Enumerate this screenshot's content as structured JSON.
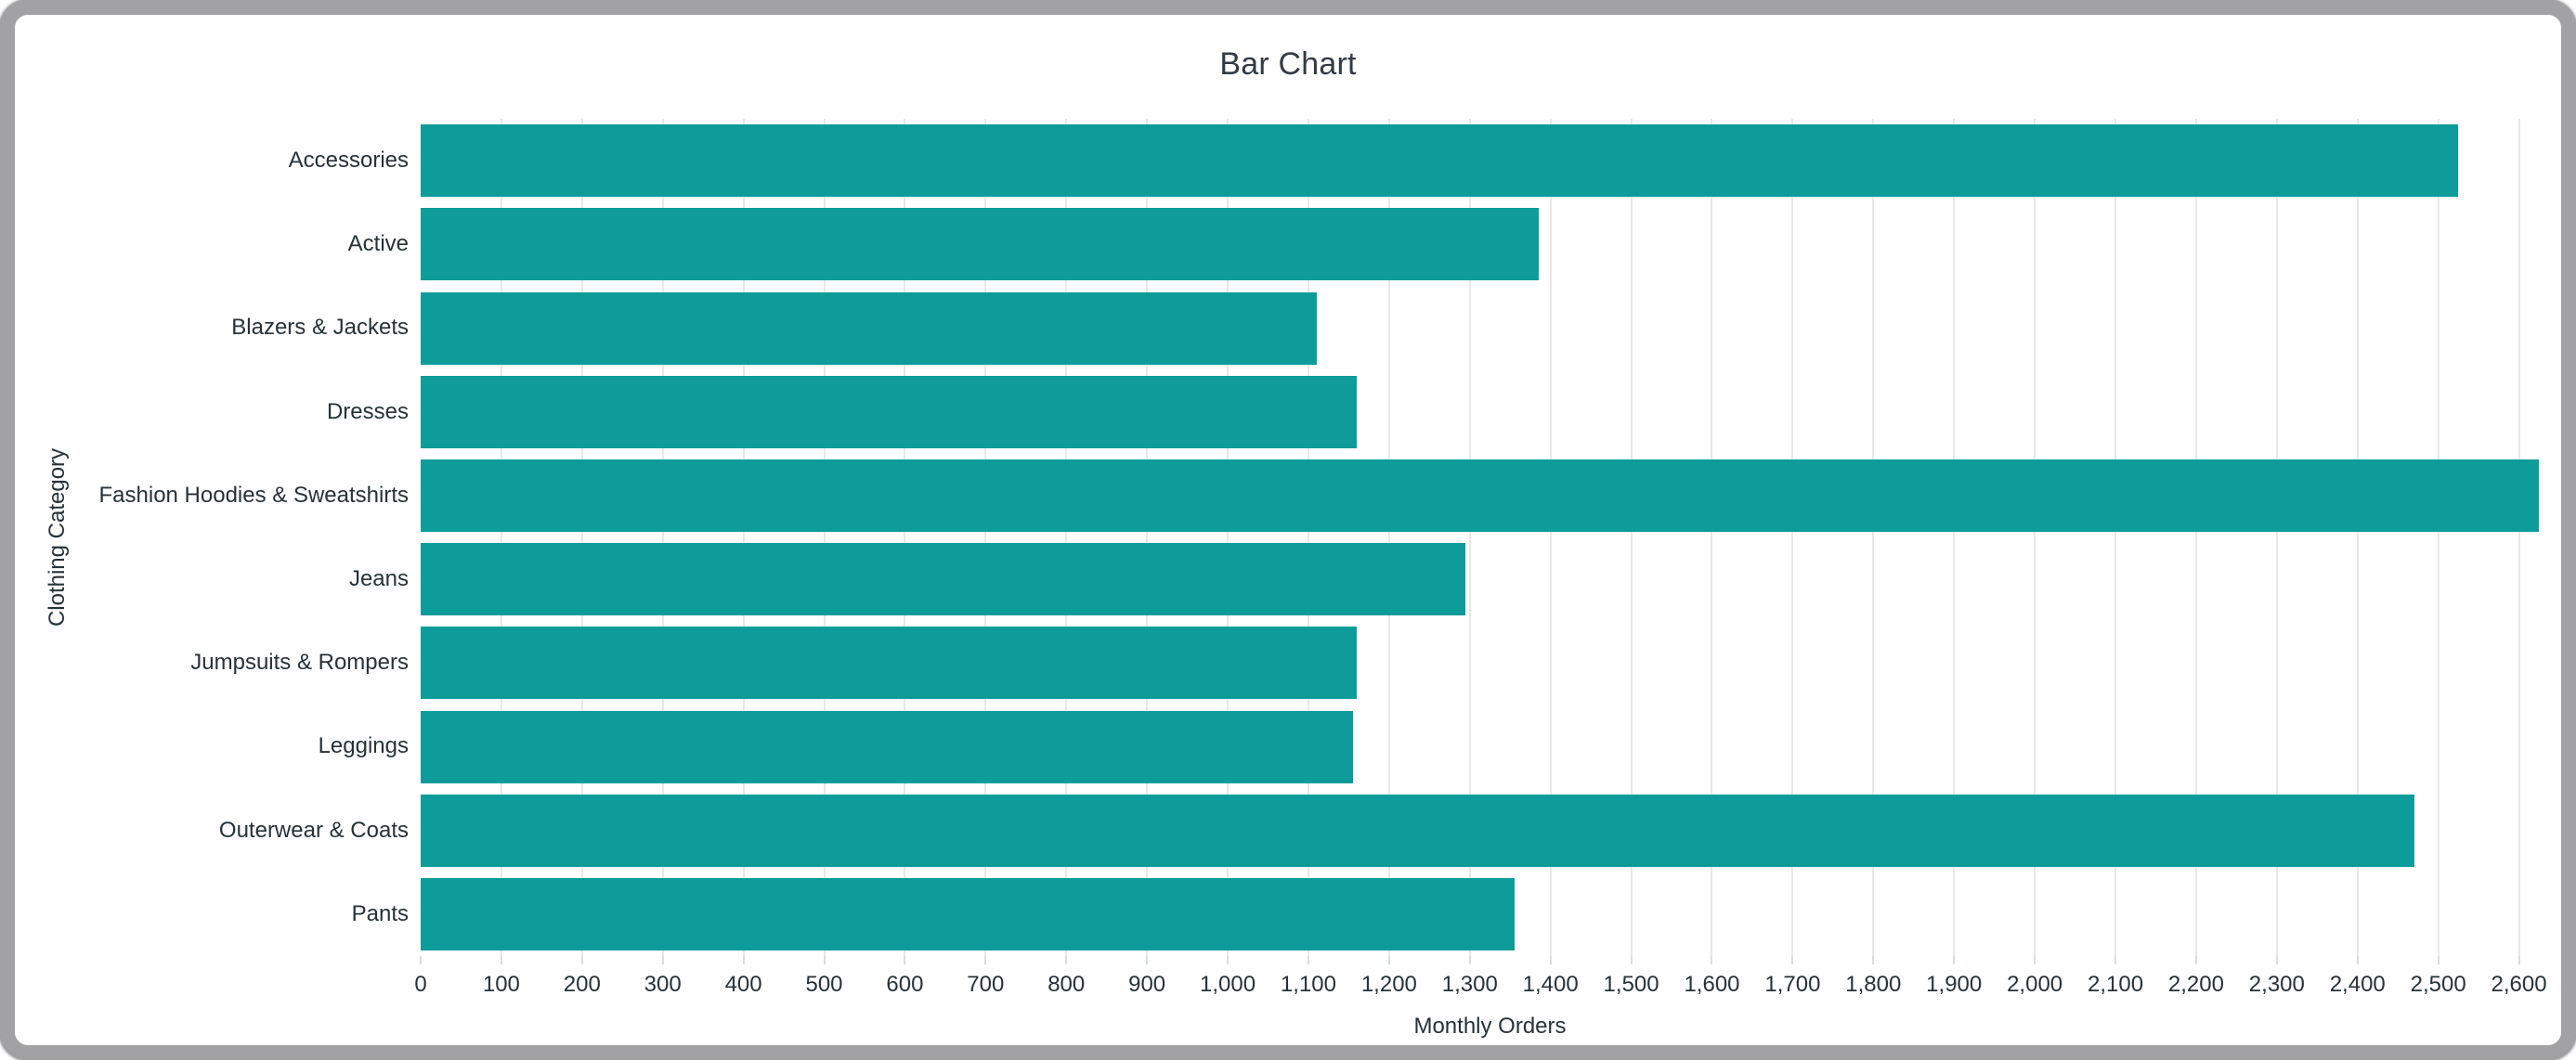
{
  "window": {
    "border_color": "#a2a2a4",
    "background": "#ffffff"
  },
  "chart_data": {
    "type": "bar",
    "orientation": "horizontal",
    "title": "Bar Chart",
    "xlabel": "Monthly Orders",
    "ylabel": "Clothing Category",
    "categories": [
      "Accessories",
      "Active",
      "Blazers & Jackets",
      "Dresses",
      "Fashion Hoodies & Sweatshirts",
      "Jeans",
      "Jumpsuits & Rompers",
      "Leggings",
      "Outerwear & Coats",
      "Pants"
    ],
    "values": [
      2525,
      1385,
      1110,
      1160,
      2625,
      1295,
      1160,
      1155,
      2470,
      1355
    ],
    "xlim": [
      0,
      2650
    ],
    "x_tick_interval": 100,
    "x_tick_labels": [
      "0",
      "100",
      "200",
      "300",
      "400",
      "500",
      "600",
      "700",
      "800",
      "900",
      "1,000",
      "1,100",
      "1,200",
      "1,300",
      "1,400",
      "1,500",
      "1,600",
      "1,700",
      "1,800",
      "1,900",
      "2,000",
      "2,100",
      "2,200",
      "2,300",
      "2,400",
      "2,500",
      "2,600"
    ],
    "grid": true,
    "legend": false,
    "colors": {
      "bar": "#0d9c99",
      "grid": "#e8e8e8",
      "tick_mark": "#d7dee4",
      "text": "#263238",
      "title": "#323b44"
    }
  }
}
